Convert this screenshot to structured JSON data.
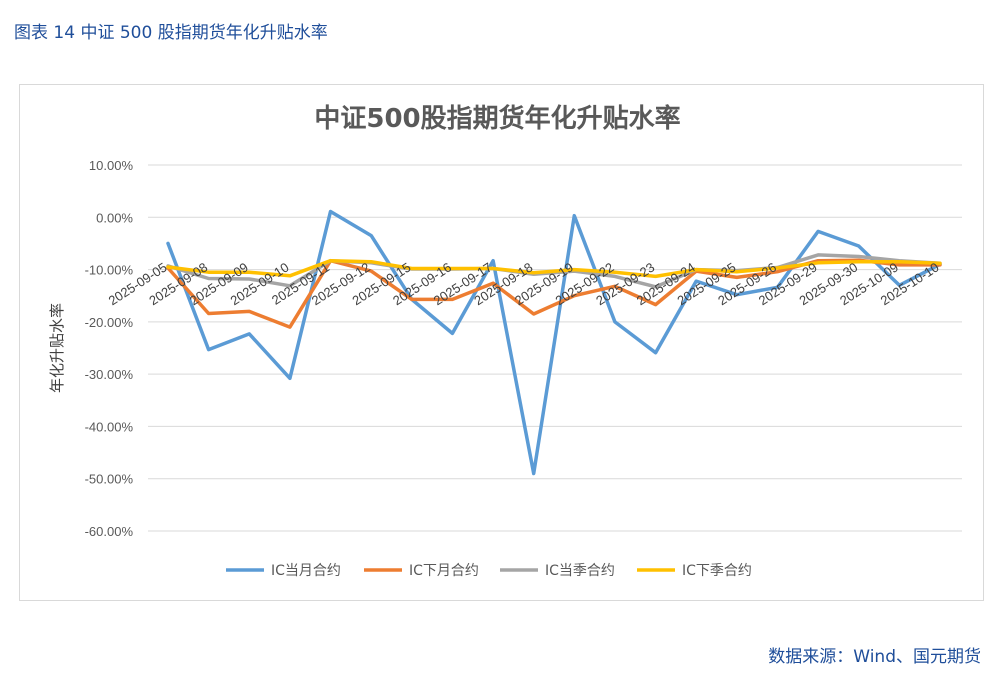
{
  "caption": "图表 14  中证 500 股指期货年化升贴水率",
  "source": "数据来源：Wind、国元期货",
  "chart_data": {
    "type": "line",
    "title": "中证500股指期货年化升贴水率",
    "xlabel": "",
    "ylabel": "年化升贴水率",
    "ylim": [
      -0.6,
      0.1
    ],
    "yticks": [
      0.1,
      0.0,
      -0.1,
      -0.2,
      -0.3,
      -0.4,
      -0.5,
      -0.6
    ],
    "ytick_labels": [
      "10.00%",
      "0.00%",
      "-10.00%",
      "-20.00%",
      "-30.00%",
      "-40.00%",
      "-50.00%",
      "-60.00%"
    ],
    "grid": true,
    "legend_position": "bottom",
    "categories": [
      "2025-09-05",
      "2025-09-08",
      "2025-09-09",
      "2025-09-10",
      "2025-09-11",
      "2025-09-12",
      "2025-09-15",
      "2025-09-16",
      "2025-09-17",
      "2025-09-18",
      "2025-09-19",
      "2025-09-22",
      "2025-09-23",
      "2025-09-24",
      "2025-09-25",
      "2025-09-26",
      "2025-09-29",
      "2025-09-30",
      "2025-10-09",
      "2025-10-10"
    ],
    "series": [
      {
        "name": "IC当月合约",
        "color": "#5b9bd5",
        "values": [
          -0.05,
          -0.253,
          -0.223,
          -0.308,
          0.011,
          -0.035,
          -0.157,
          -0.222,
          -0.083,
          -0.49,
          0.003,
          -0.2,
          -0.259,
          -0.122,
          -0.148,
          -0.134,
          -0.027,
          -0.055,
          -0.13,
          -0.09
        ]
      },
      {
        "name": "IC下月合约",
        "color": "#ed7d31",
        "values": [
          -0.097,
          -0.184,
          -0.18,
          -0.21,
          -0.083,
          -0.103,
          -0.157,
          -0.157,
          -0.126,
          -0.185,
          -0.15,
          -0.132,
          -0.167,
          -0.103,
          -0.115,
          -0.104,
          -0.083,
          -0.082,
          -0.091,
          -0.091
        ]
      },
      {
        "name": "IC当季合约",
        "color": "#a5a5a5",
        "values": [
          -0.093,
          -0.117,
          -0.118,
          -0.131,
          -0.083,
          -0.087,
          -0.099,
          -0.099,
          -0.098,
          -0.109,
          -0.103,
          -0.113,
          -0.133,
          -0.1,
          -0.102,
          -0.096,
          -0.072,
          -0.075,
          -0.083,
          -0.088
        ]
      },
      {
        "name": "IC下季合约",
        "color": "#ffc000",
        "values": [
          -0.095,
          -0.105,
          -0.105,
          -0.112,
          -0.083,
          -0.085,
          -0.098,
          -0.098,
          -0.098,
          -0.106,
          -0.1,
          -0.105,
          -0.113,
          -0.1,
          -0.104,
          -0.097,
          -0.087,
          -0.085,
          -0.085,
          -0.088
        ]
      }
    ]
  }
}
